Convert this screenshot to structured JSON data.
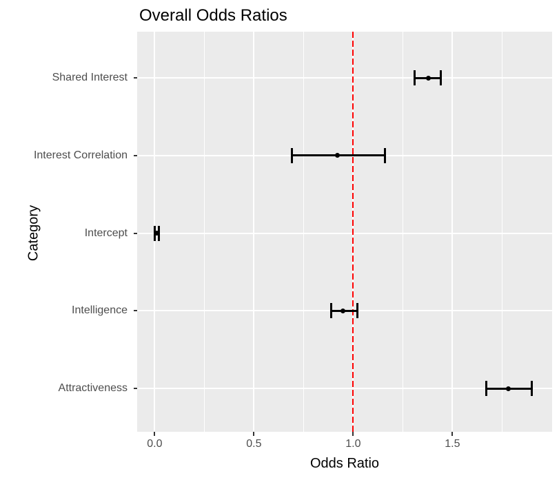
{
  "chart_data": {
    "type": "scatter",
    "variant": "forest-plot-with-error-bars",
    "title": "Overall Odds Ratios",
    "xlabel": "Odds Ratio",
    "ylabel": "Category",
    "categories": [
      "Shared Interest",
      "Interest Correlation",
      "Intercept",
      "Intelligence",
      "Attractiveness"
    ],
    "series": [
      {
        "name": "Odds Ratio",
        "values": [
          1.38,
          0.92,
          0.01,
          0.95,
          1.78
        ],
        "ci_low": [
          1.31,
          0.69,
          0.0,
          0.89,
          1.67
        ],
        "ci_high": [
          1.44,
          1.16,
          0.02,
          1.02,
          1.9
        ]
      }
    ],
    "x_tick_labels": [
      "0.0",
      "0.5",
      "1.0",
      "1.5"
    ],
    "x_tick_values": [
      0.0,
      0.5,
      1.0,
      1.5
    ],
    "x_minor_values": [
      0.25,
      0.75,
      1.25,
      1.75
    ],
    "xlim": [
      -0.088,
      2.002
    ],
    "reference_line": {
      "x": 1.0,
      "color": "#FF0000",
      "style": "dashed"
    },
    "grid": "on",
    "legend": "none",
    "colors": {
      "panel_bg": "#EBEBEB",
      "gridline": "#FFFFFF",
      "data": "#000000",
      "axis_text": "#4D4D4D",
      "title_text": "#000000",
      "tick_mark": "#333333"
    }
  }
}
